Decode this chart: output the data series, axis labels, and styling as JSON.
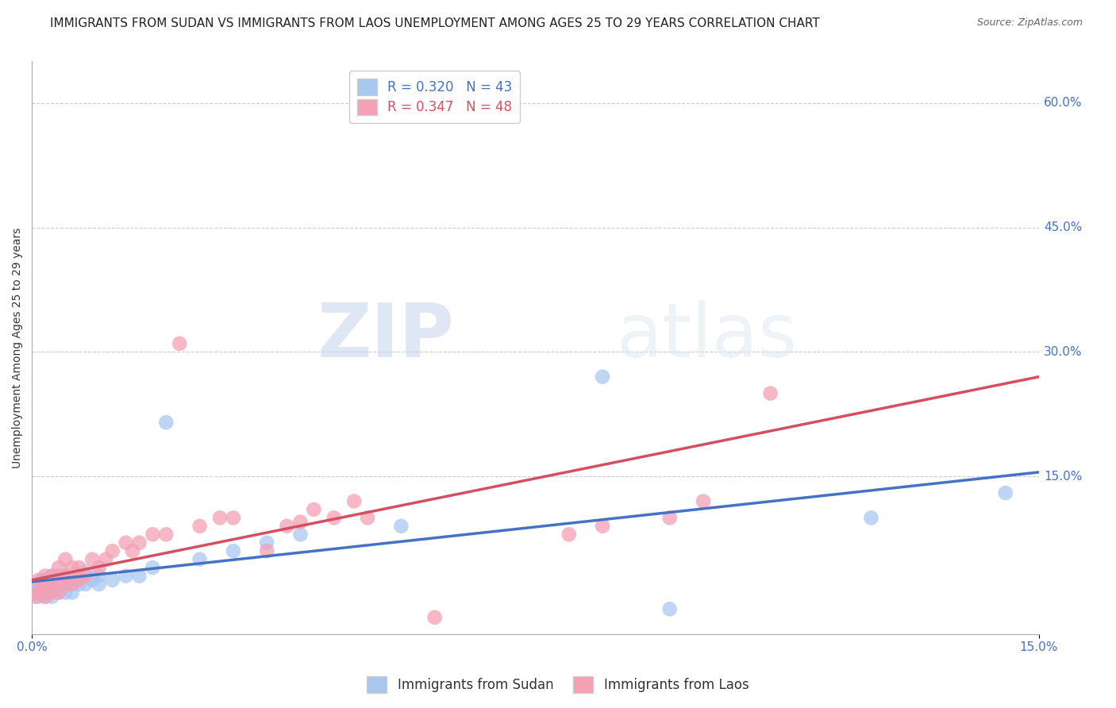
{
  "title": "IMMIGRANTS FROM SUDAN VS IMMIGRANTS FROM LAOS UNEMPLOYMENT AMONG AGES 25 TO 29 YEARS CORRELATION CHART",
  "source": "Source: ZipAtlas.com",
  "ylabel": "Unemployment Among Ages 25 to 29 years",
  "xlim": [
    0,
    0.15
  ],
  "ylim": [
    -0.04,
    0.65
  ],
  "ytick_labels_right": [
    "15.0%",
    "30.0%",
    "45.0%",
    "60.0%"
  ],
  "ytick_vals_right": [
    0.15,
    0.3,
    0.45,
    0.6
  ],
  "sudan_color": "#a8c8f0",
  "laos_color": "#f4a0b5",
  "sudan_line_color": "#4472c4",
  "laos_line_color": "#d45060",
  "sudan_R": 0.32,
  "sudan_N": 43,
  "laos_R": 0.347,
  "laos_N": 48,
  "background_color": "#ffffff",
  "grid_color": "#cccccc",
  "sudan_x": [
    0.0005,
    0.001,
    0.001,
    0.0015,
    0.0015,
    0.002,
    0.002,
    0.002,
    0.0025,
    0.0025,
    0.003,
    0.003,
    0.003,
    0.003,
    0.004,
    0.004,
    0.004,
    0.005,
    0.005,
    0.005,
    0.006,
    0.006,
    0.007,
    0.007,
    0.008,
    0.008,
    0.009,
    0.01,
    0.01,
    0.012,
    0.014,
    0.016,
    0.018,
    0.02,
    0.025,
    0.03,
    0.035,
    0.04,
    0.055,
    0.085,
    0.095,
    0.125,
    0.145
  ],
  "sudan_y": [
    0.01,
    0.005,
    0.02,
    0.01,
    0.025,
    0.005,
    0.015,
    0.025,
    0.01,
    0.02,
    0.005,
    0.015,
    0.02,
    0.03,
    0.01,
    0.02,
    0.03,
    0.01,
    0.02,
    0.03,
    0.01,
    0.025,
    0.02,
    0.03,
    0.02,
    0.035,
    0.025,
    0.02,
    0.03,
    0.025,
    0.03,
    0.03,
    0.04,
    0.215,
    0.05,
    0.06,
    0.07,
    0.08,
    0.09,
    0.27,
    -0.01,
    0.1,
    0.13
  ],
  "laos_x": [
    0.0005,
    0.001,
    0.001,
    0.0015,
    0.002,
    0.002,
    0.002,
    0.0025,
    0.003,
    0.003,
    0.003,
    0.004,
    0.004,
    0.004,
    0.005,
    0.005,
    0.005,
    0.006,
    0.006,
    0.007,
    0.007,
    0.008,
    0.009,
    0.01,
    0.011,
    0.012,
    0.014,
    0.015,
    0.016,
    0.018,
    0.02,
    0.022,
    0.025,
    0.028,
    0.03,
    0.035,
    0.038,
    0.04,
    0.042,
    0.045,
    0.048,
    0.05,
    0.06,
    0.08,
    0.085,
    0.095,
    0.1,
    0.11
  ],
  "laos_y": [
    0.005,
    0.01,
    0.025,
    0.02,
    0.005,
    0.015,
    0.03,
    0.02,
    0.01,
    0.02,
    0.03,
    0.01,
    0.025,
    0.04,
    0.02,
    0.03,
    0.05,
    0.02,
    0.04,
    0.025,
    0.04,
    0.03,
    0.05,
    0.04,
    0.05,
    0.06,
    0.07,
    0.06,
    0.07,
    0.08,
    0.08,
    0.31,
    0.09,
    0.1,
    0.1,
    0.06,
    0.09,
    0.095,
    0.11,
    0.1,
    0.12,
    0.1,
    -0.02,
    0.08,
    0.09,
    0.1,
    0.12,
    0.25
  ],
  "watermark_zip": "ZIP",
  "watermark_atlas": "atlas",
  "title_fontsize": 11,
  "axis_label_fontsize": 10,
  "tick_fontsize": 11
}
